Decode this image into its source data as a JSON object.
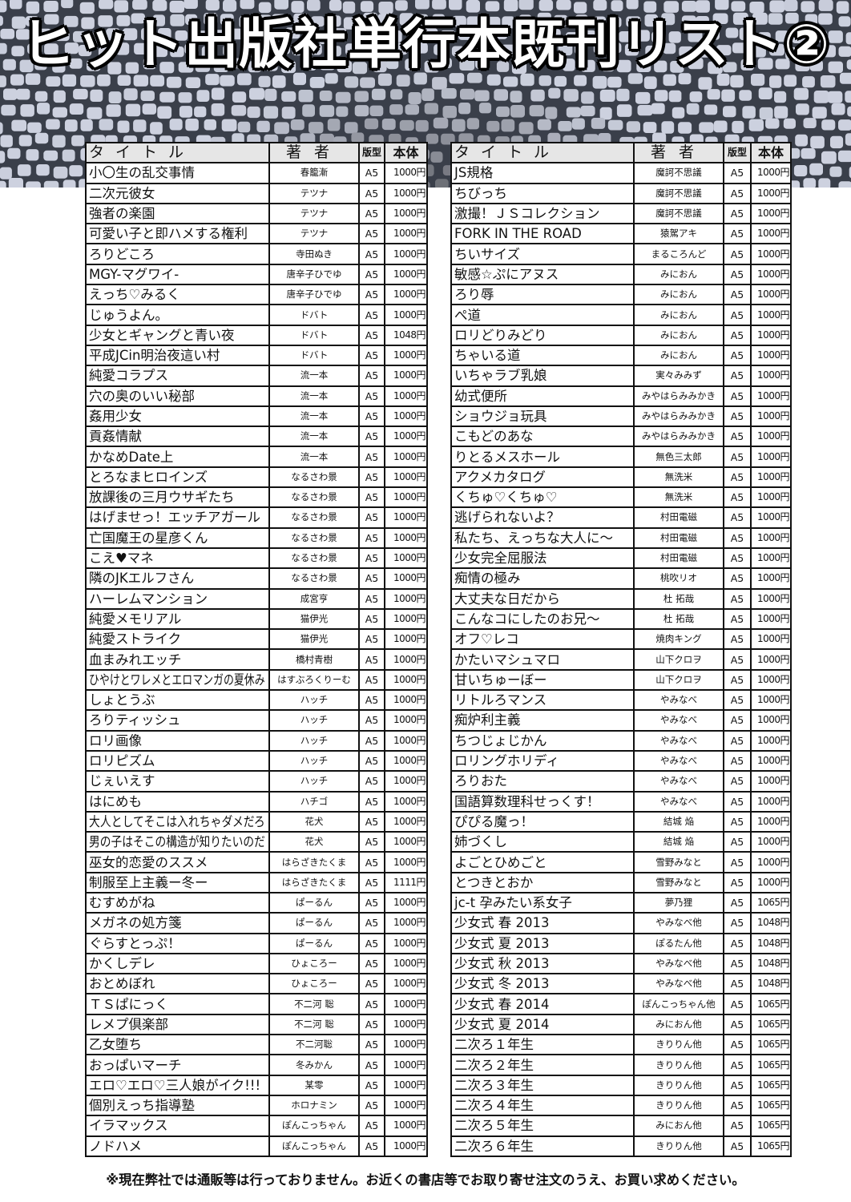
{
  "title": "ヒット出版社単行本既刊リスト②",
  "headers": {
    "title": "タイトル",
    "author": "著者",
    "format": "版型",
    "price": "本体"
  },
  "footer": "※現在弊社では通販等は行っておりません。お近くの書店等でお取り寄せ注文のうえ、お買い求めください。",
  "colors": {
    "mosaic_light": "#d9dde5",
    "mosaic_dark": "#3a3f4a",
    "border": "#111111",
    "header_bg": "#e6e6e6"
  },
  "left_list": [
    [
      "小〇生の乱交事情",
      "春籠漸",
      "A5",
      "1000円"
    ],
    [
      "二次元彼女",
      "テツナ",
      "A5",
      "1000円"
    ],
    [
      "強者の楽園",
      "テツナ",
      "A5",
      "1000円"
    ],
    [
      "可愛い子と即ハメする権利",
      "テツナ",
      "A5",
      "1000円"
    ],
    [
      "ろりどころ",
      "寺田ぬき",
      "A5",
      "1000円"
    ],
    [
      "MGY-マグワイ-",
      "唐辛子ひでゆ",
      "A5",
      "1000円"
    ],
    [
      "えっち♡みるく",
      "唐辛子ひでゆ",
      "A5",
      "1000円"
    ],
    [
      "じゅうよん。",
      "ドバト",
      "A5",
      "1000円"
    ],
    [
      "少女とギャングと青い夜",
      "ドバト",
      "A5",
      "1048円"
    ],
    [
      "平成JCin明治夜這い村",
      "ドバト",
      "A5",
      "1000円"
    ],
    [
      "純愛コラプス",
      "流一本",
      "A5",
      "1000円"
    ],
    [
      "穴の奥のいい秘部",
      "流一本",
      "A5",
      "1000円"
    ],
    [
      "姦用少女",
      "流一本",
      "A5",
      "1000円"
    ],
    [
      "貢姦情献",
      "流一本",
      "A5",
      "1000円"
    ],
    [
      "かなめDate上",
      "流一本",
      "A5",
      "1000円"
    ],
    [
      "とろなまヒロインズ",
      "なるさわ景",
      "A5",
      "1000円"
    ],
    [
      "放課後の三月ウサギたち",
      "なるさわ景",
      "A5",
      "1000円"
    ],
    [
      "はげませっ！エッチアガール",
      "なるさわ景",
      "A5",
      "1000円"
    ],
    [
      "亡国魔王の星彦くん",
      "なるさわ景",
      "A5",
      "1000円"
    ],
    [
      "こえ♥マネ",
      "なるさわ景",
      "A5",
      "1000円"
    ],
    [
      "隣のJKエルフさん",
      "なるさわ景",
      "A5",
      "1000円"
    ],
    [
      "ハーレムマンション",
      "成宮亨",
      "A5",
      "1000円"
    ],
    [
      "純愛メモリアル",
      "猫伊光",
      "A5",
      "1000円"
    ],
    [
      "純愛ストライク",
      "猫伊光",
      "A5",
      "1000円"
    ],
    [
      "血まみれエッチ",
      "橋村青樹",
      "A5",
      "1000円"
    ],
    [
      "ひやけとワレメとエロマンガの夏休み",
      "はすぶろくりーむ",
      "A5",
      "1000円"
    ],
    [
      "しょとうぶ",
      "ハッチ",
      "A5",
      "1000円"
    ],
    [
      "ろりティッシュ",
      "ハッチ",
      "A5",
      "1000円"
    ],
    [
      "ロリ画像",
      "ハッチ",
      "A5",
      "1000円"
    ],
    [
      "ロリピズム",
      "ハッチ",
      "A5",
      "1000円"
    ],
    [
      "じぇいえす",
      "ハッチ",
      "A5",
      "1000円"
    ],
    [
      "はにめも",
      "ハチゴ",
      "A5",
      "1000円"
    ],
    [
      "大人としてそこは入れちゃダメだろ",
      "花犬",
      "A5",
      "1000円"
    ],
    [
      "男の子はそこの構造が知りたいのだ",
      "花犬",
      "A5",
      "1000円"
    ],
    [
      "巫女的恋愛のススメ",
      "はらざきたくま",
      "A5",
      "1000円"
    ],
    [
      "制服至上主義ー冬ー",
      "はらざきたくま",
      "A5",
      "1111円"
    ],
    [
      "むすめがね",
      "ぱーるん",
      "A5",
      "1000円"
    ],
    [
      "メガネの処方箋",
      "ぱーるん",
      "A5",
      "1000円"
    ],
    [
      "ぐらすとっぷ！",
      "ぱーるん",
      "A5",
      "1000円"
    ],
    [
      "かくしデレ",
      "ひょころー",
      "A5",
      "1000円"
    ],
    [
      "おとめぼれ",
      "ひょころー",
      "A5",
      "1000円"
    ],
    [
      "ＴＳぱにっく",
      "不二河 聡",
      "A5",
      "1000円"
    ],
    [
      "レメプ倶楽部",
      "不二河 聡",
      "A5",
      "1000円"
    ],
    [
      "乙女堕ち",
      "不二河聡",
      "A5",
      "1000円"
    ],
    [
      "おっぱいマーチ",
      "冬みかん",
      "A5",
      "1000円"
    ],
    [
      "エロ♡エロ♡三人娘がイク!!!",
      "某零",
      "A5",
      "1000円"
    ],
    [
      "個別えっち指導塾",
      "ホロナミン",
      "A5",
      "1000円"
    ],
    [
      "イラマックス",
      "ぽんこっちゃん",
      "A5",
      "1000円"
    ],
    [
      "ノドハメ",
      "ぽんこっちゃん",
      "A5",
      "1000円"
    ]
  ],
  "right_list": [
    [
      "JS規格",
      "魔訶不思議",
      "A5",
      "1000円"
    ],
    [
      "ちびっち",
      "魔訶不思議",
      "A5",
      "1000円"
    ],
    [
      "激撮！ＪＳコレクション",
      "魔訶不思議",
      "A5",
      "1000円"
    ],
    [
      "FORK IN THE ROAD",
      "猿駕アキ",
      "A5",
      "1000円"
    ],
    [
      "ちいサイズ",
      "まるころんど",
      "A5",
      "1000円"
    ],
    [
      "敏感☆ぷにアヌス",
      "みにおん",
      "A5",
      "1000円"
    ],
    [
      "ろり辱",
      "みにおん",
      "A5",
      "1000円"
    ],
    [
      "ぺ道",
      "みにおん",
      "A5",
      "1000円"
    ],
    [
      "ロリどりみどり",
      "みにおん",
      "A5",
      "1000円"
    ],
    [
      "ちゃいる道",
      "みにおん",
      "A5",
      "1000円"
    ],
    [
      "いちゃラブ乳娘",
      "実々みみず",
      "A5",
      "1000円"
    ],
    [
      "幼式便所",
      "みやはらみみかき",
      "A5",
      "1000円"
    ],
    [
      "ショウジョ玩具",
      "みやはらみみかき",
      "A5",
      "1000円"
    ],
    [
      "こもどのあな",
      "みやはらみみかき",
      "A5",
      "1000円"
    ],
    [
      "りとるメスホール",
      "無色三太郎",
      "A5",
      "1000円"
    ],
    [
      "アクメカタログ",
      "無洗米",
      "A5",
      "1000円"
    ],
    [
      "くちゅ♡くちゅ♡",
      "無洗米",
      "A5",
      "1000円"
    ],
    [
      "逃げられないよ？",
      "村田電磁",
      "A5",
      "1000円"
    ],
    [
      "私たち、えっちな大人に～",
      "村田電磁",
      "A5",
      "1000円"
    ],
    [
      "少女完全屈服法",
      "村田電磁",
      "A5",
      "1000円"
    ],
    [
      "痴情の極み",
      "桃吹リオ",
      "A5",
      "1000円"
    ],
    [
      "大丈夫な日だから",
      "杜 拓哉",
      "A5",
      "1000円"
    ],
    [
      "こんなコにしたのお兄～",
      "杜 拓哉",
      "A5",
      "1000円"
    ],
    [
      "オフ♡レコ",
      "焼肉キング",
      "A5",
      "1000円"
    ],
    [
      "かたいマシュマロ",
      "山下クロヲ",
      "A5",
      "1000円"
    ],
    [
      "甘いちゅーぼー",
      "山下クロヲ",
      "A5",
      "1000円"
    ],
    [
      "リトルろマンス",
      "やみなべ",
      "A5",
      "1000円"
    ],
    [
      "痴炉利主義",
      "やみなべ",
      "A5",
      "1000円"
    ],
    [
      "ちつじょじかん",
      "やみなべ",
      "A5",
      "1000円"
    ],
    [
      "ロリングホリディ",
      "やみなべ",
      "A5",
      "1000円"
    ],
    [
      "ろりおた",
      "やみなべ",
      "A5",
      "1000円"
    ],
    [
      "国語算数理科せっくす！",
      "やみなべ",
      "A5",
      "1000円"
    ],
    [
      "ぴぴる魔っ！",
      "結城 焔",
      "A5",
      "1000円"
    ],
    [
      "姉づくし",
      "結城 焔",
      "A5",
      "1000円"
    ],
    [
      "よごとひめごと",
      "雪野みなと",
      "A5",
      "1000円"
    ],
    [
      "とつきとおか",
      "雪野みなと",
      "A5",
      "1000円"
    ],
    [
      "jc-t 孕みたい系女子",
      "夢乃狸",
      "A5",
      "1065円"
    ],
    [
      "少女式 春 2013",
      "やみなべ他",
      "A5",
      "1048円"
    ],
    [
      "少女式 夏 2013",
      "ぽるたん他",
      "A5",
      "1048円"
    ],
    [
      "少女式 秋 2013",
      "やみなべ他",
      "A5",
      "1048円"
    ],
    [
      "少女式 冬 2013",
      "やみなべ他",
      "A5",
      "1048円"
    ],
    [
      "少女式 春 2014",
      "ぽんこっちゃん他",
      "A5",
      "1065円"
    ],
    [
      "少女式 夏 2014",
      "みにおん他",
      "A5",
      "1065円"
    ],
    [
      "二次ろ１年生",
      "きりりん他",
      "A5",
      "1065円"
    ],
    [
      "二次ろ２年生",
      "きりりん他",
      "A5",
      "1065円"
    ],
    [
      "二次ろ３年生",
      "きりりん他",
      "A5",
      "1065円"
    ],
    [
      "二次ろ４年生",
      "きりりん他",
      "A5",
      "1065円"
    ],
    [
      "二次ろ５年生",
      "みにおん他",
      "A5",
      "1065円"
    ],
    [
      "二次ろ６年生",
      "きりりん他",
      "A5",
      "1065円"
    ]
  ]
}
